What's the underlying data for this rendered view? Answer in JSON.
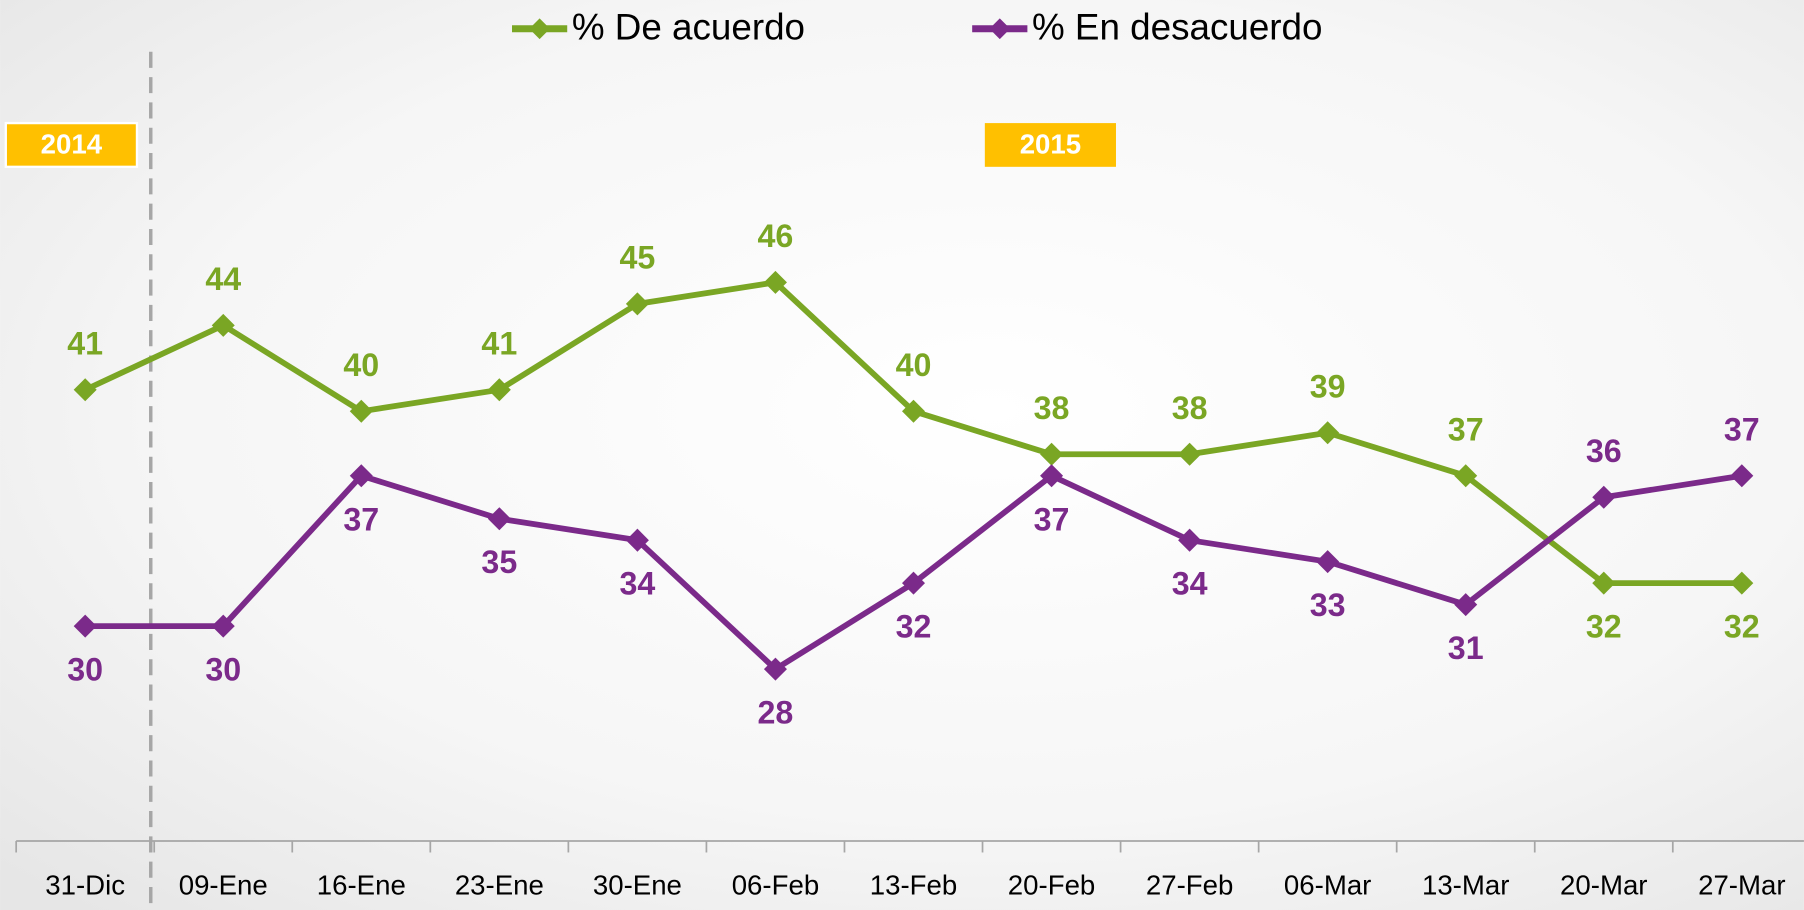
{
  "chart_data": {
    "type": "line",
    "categories": [
      "31-Dic",
      "09-Ene",
      "16-Ene",
      "23-Ene",
      "30-Ene",
      "06-Feb",
      "13-Feb",
      "20-Feb",
      "27-Feb",
      "06-Mar",
      "13-Mar",
      "20-Mar",
      "27-Mar"
    ],
    "series": [
      {
        "name": "% De acuerdo",
        "color": "#7aa624",
        "values": [
          41,
          44,
          40,
          41,
          45,
          46,
          40,
          38,
          38,
          39,
          37,
          32,
          32
        ]
      },
      {
        "name": "% En desacuerdo",
        "color": "#7b2a8a",
        "values": [
          30,
          30,
          37,
          35,
          34,
          28,
          32,
          37,
          34,
          33,
          31,
          36,
          37
        ]
      }
    ],
    "annotations": [
      "2014",
      "2015"
    ],
    "ylim": [
      20,
      60
    ],
    "legend": "top"
  }
}
